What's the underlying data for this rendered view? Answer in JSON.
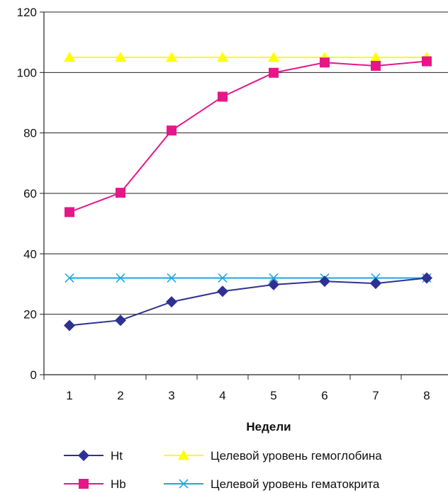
{
  "chart_data": {
    "type": "line",
    "x": [
      1,
      2,
      3,
      4,
      5,
      6,
      7,
      8
    ],
    "xlabel": "Недели",
    "ylabel": "",
    "ylim": [
      0,
      120
    ],
    "yticks": [
      0,
      20,
      40,
      60,
      80,
      100,
      120
    ],
    "grid": "horizontal",
    "legend_placement": "bottom",
    "series": [
      {
        "name": "Ht",
        "values": [
          16.3,
          18,
          24.1,
          27.6,
          29.8,
          30.9,
          30.2,
          32
        ],
        "color": "#2e3192",
        "marker": "diamond"
      },
      {
        "name": "Hb",
        "values": [
          53.8,
          60.2,
          80.8,
          92,
          99.9,
          103.3,
          102.2,
          103.7
        ],
        "color": "#e6168a",
        "marker": "square"
      },
      {
        "name": "Целевой уровень гемоглобина",
        "values": [
          105,
          105,
          105,
          105,
          105,
          105,
          105,
          105
        ],
        "color": "#ffff00",
        "marker": "triangle"
      },
      {
        "name": "Целевой уровень гематокрита",
        "values": [
          32,
          32,
          32,
          32,
          32,
          32,
          32,
          32
        ],
        "color": "#1ea7e1",
        "marker": "x"
      }
    ]
  }
}
